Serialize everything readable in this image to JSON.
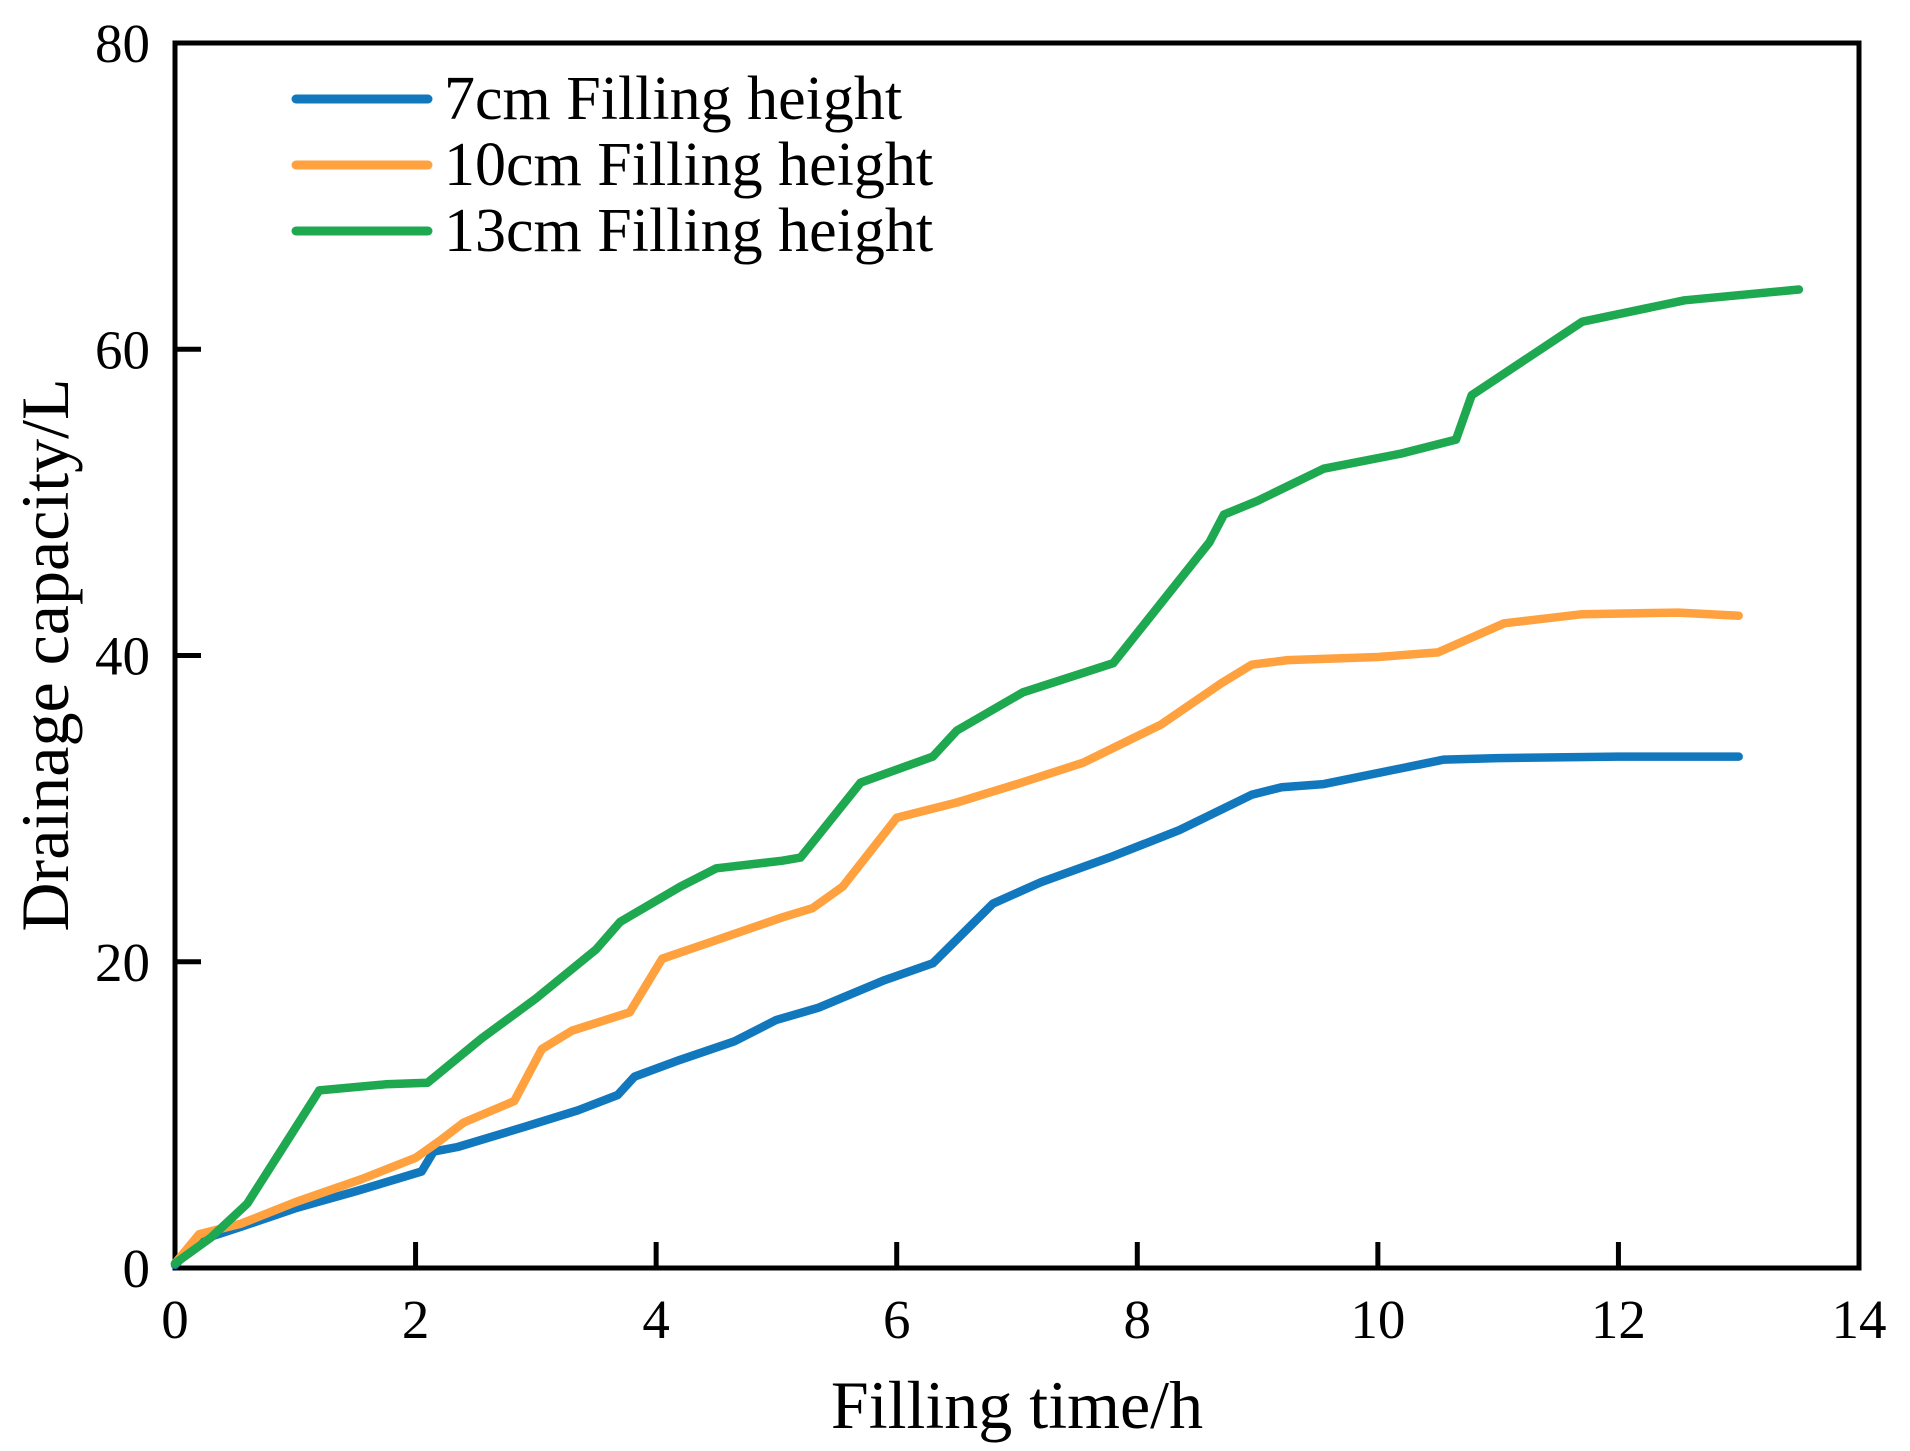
{
  "figure": {
    "background": "#ffffff",
    "text_color": "#000000"
  },
  "chart_data": {
    "type": "line",
    "title": "",
    "xlabel": "Filling time/h",
    "ylabel": "Drainage capacity/L",
    "xlim": [
      0,
      14
    ],
    "ylim": [
      0,
      80
    ],
    "x_ticks": [
      0,
      2,
      4,
      6,
      8,
      10,
      12,
      14
    ],
    "y_ticks": [
      0,
      20,
      40,
      60,
      80
    ],
    "grid": false,
    "legend_position": "upper-left",
    "legend_border": false,
    "series": [
      {
        "name": "7cm Filling height",
        "color": "#1278bd",
        "points": [
          [
            0,
            0.2
          ],
          [
            0.2,
            1.8
          ],
          [
            0.55,
            2.7
          ],
          [
            1,
            3.9
          ],
          [
            1.5,
            5
          ],
          [
            2.05,
            6.3
          ],
          [
            2.15,
            7.6
          ],
          [
            2.35,
            7.9
          ],
          [
            2.9,
            9.2
          ],
          [
            3.35,
            10.3
          ],
          [
            3.68,
            11.3
          ],
          [
            3.82,
            12.5
          ],
          [
            4.2,
            13.6
          ],
          [
            4.65,
            14.8
          ],
          [
            5,
            16.2
          ],
          [
            5.35,
            17
          ],
          [
            5.9,
            18.8
          ],
          [
            6.3,
            19.9
          ],
          [
            6.8,
            23.8
          ],
          [
            7.2,
            25.2
          ],
          [
            7.8,
            26.9
          ],
          [
            8.35,
            28.6
          ],
          [
            8.95,
            30.9
          ],
          [
            9.2,
            31.4
          ],
          [
            9.55,
            31.6
          ],
          [
            10.55,
            33.2
          ],
          [
            11,
            33.3
          ],
          [
            12,
            33.4
          ],
          [
            13,
            33.4
          ]
        ]
      },
      {
        "name": "10cm Filling height",
        "color": "#ffa13e",
        "points": [
          [
            0,
            0.3
          ],
          [
            0.2,
            2.2
          ],
          [
            0.55,
            2.9
          ],
          [
            1,
            4.3
          ],
          [
            1.55,
            5.8
          ],
          [
            2,
            7.2
          ],
          [
            2.2,
            8.3
          ],
          [
            2.4,
            9.5
          ],
          [
            2.82,
            10.9
          ],
          [
            3.05,
            14.3
          ],
          [
            3.3,
            15.5
          ],
          [
            3.78,
            16.7
          ],
          [
            4.05,
            20.2
          ],
          [
            4.35,
            21
          ],
          [
            5.05,
            22.9
          ],
          [
            5.3,
            23.5
          ],
          [
            5.55,
            24.9
          ],
          [
            6,
            29.4
          ],
          [
            6.5,
            30.4
          ],
          [
            7,
            31.6
          ],
          [
            7.55,
            33
          ],
          [
            8.2,
            35.5
          ],
          [
            8.7,
            38.2
          ],
          [
            8.95,
            39.4
          ],
          [
            9.25,
            39.7
          ],
          [
            10,
            39.9
          ],
          [
            10.5,
            40.2
          ],
          [
            11.05,
            42.1
          ],
          [
            11.7,
            42.7
          ],
          [
            12.5,
            42.8
          ],
          [
            13,
            42.6
          ]
        ]
      },
      {
        "name": "13cm Filling height",
        "color": "#1ea850",
        "points": [
          [
            0,
            0.3
          ],
          [
            0.3,
            2
          ],
          [
            0.6,
            4.2
          ],
          [
            1.2,
            11.6
          ],
          [
            1.75,
            12
          ],
          [
            2.1,
            12.1
          ],
          [
            2.55,
            15
          ],
          [
            3,
            17.6
          ],
          [
            3.5,
            20.8
          ],
          [
            3.7,
            22.6
          ],
          [
            4.2,
            24.9
          ],
          [
            4.5,
            26.1
          ],
          [
            5.05,
            26.6
          ],
          [
            5.2,
            26.8
          ],
          [
            5.7,
            31.7
          ],
          [
            6.3,
            33.4
          ],
          [
            6.5,
            35.1
          ],
          [
            7.05,
            37.6
          ],
          [
            7.8,
            39.5
          ],
          [
            8.6,
            47.4
          ],
          [
            8.72,
            49.2
          ],
          [
            9,
            50.1
          ],
          [
            9.55,
            52.2
          ],
          [
            10.2,
            53.2
          ],
          [
            10.65,
            54.1
          ],
          [
            10.78,
            57
          ],
          [
            11.7,
            61.8
          ],
          [
            12.55,
            63.2
          ],
          [
            13.5,
            63.9
          ]
        ]
      }
    ]
  }
}
